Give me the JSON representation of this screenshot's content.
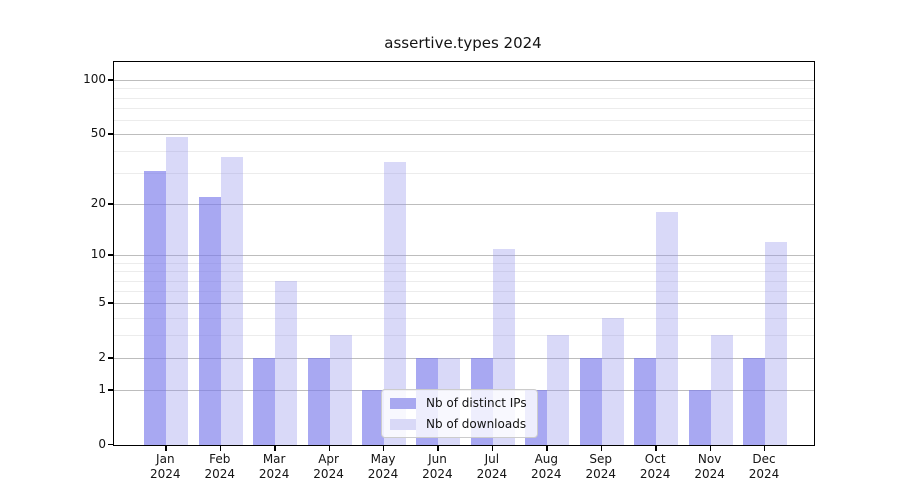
{
  "title": "assertive.types 2024",
  "chart_data": {
    "type": "bar",
    "title": "assertive.types 2024",
    "categories": [
      "Jan 2024",
      "Feb 2024",
      "Mar 2024",
      "Apr 2024",
      "May 2024",
      "Jun 2024",
      "Jul 2024",
      "Aug 2024",
      "Sep 2024",
      "Oct 2024",
      "Nov 2024",
      "Dec 2024"
    ],
    "series": [
      {
        "name": "Nb of distinct IPs",
        "color": "rgba(121,121,235,0.65)",
        "legend_color": "#a8a8f0",
        "values": [
          31,
          22,
          2,
          2,
          1,
          2,
          2,
          1,
          2,
          2,
          1,
          2
        ]
      },
      {
        "name": "Nb of downloads",
        "color": "rgba(146,146,235,0.35)",
        "legend_color": "#d9d9f7",
        "values": [
          48,
          37,
          7,
          3,
          35,
          2,
          11,
          3,
          4,
          18,
          3,
          12
        ]
      }
    ],
    "scale": "log1p",
    "ylim": [
      0,
      126
    ],
    "yticks": [
      0,
      1,
      2,
      5,
      10,
      20,
      50,
      100
    ],
    "minor_yticks": [
      3,
      4,
      6,
      7,
      8,
      9,
      30,
      40,
      60,
      70,
      80,
      90
    ],
    "grid": true,
    "legend_position": "lower center",
    "axis_color": "#000000",
    "major_grid_color": "#bdbdbd",
    "minor_grid_color": "#ececec"
  }
}
